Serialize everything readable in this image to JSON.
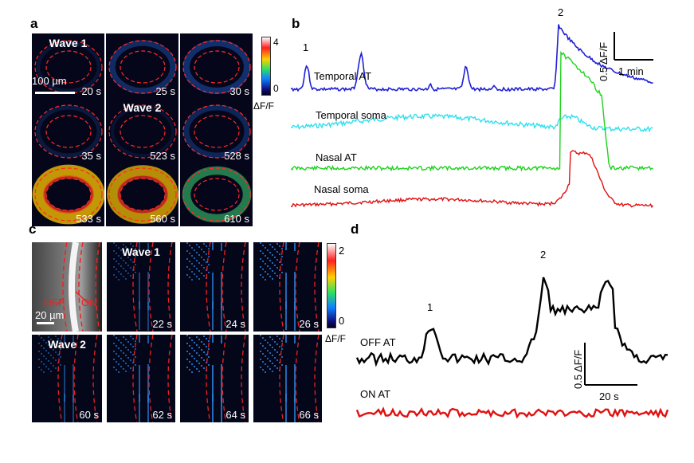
{
  "panels": {
    "a": "a",
    "b": "b",
    "c": "c",
    "d": "d"
  },
  "panel_a": {
    "colorbar": {
      "max": "4",
      "min": "0",
      "unit": "ΔF/F"
    },
    "scalebar": "100 µm",
    "tiles": [
      {
        "time": "20 s",
        "wave": "Wave 1",
        "activity": 0.05
      },
      {
        "time": "25 s",
        "wave": "",
        "activity": 0.3
      },
      {
        "time": "30 s",
        "wave": "",
        "activity": 0.35
      },
      {
        "time": "35 s",
        "wave": "",
        "activity": 0.1
      },
      {
        "time": "523 s",
        "wave": "Wave 2",
        "activity": 0.0
      },
      {
        "time": "528 s",
        "wave": "",
        "activity": 0.25
      },
      {
        "time": "533 s",
        "wave": "",
        "activity": 0.9
      },
      {
        "time": "560 s",
        "wave": "",
        "activity": 0.8
      },
      {
        "time": "610 s",
        "wave": "",
        "activity": 0.55
      }
    ]
  },
  "panel_b": {
    "traces": [
      {
        "name": "Temporal AT",
        "color": "#1f1fd6"
      },
      {
        "name": "Temporal soma",
        "color": "#2fe0f0"
      },
      {
        "name": "Nasal AT",
        "color": "#1ed21e"
      },
      {
        "name": "Nasal soma",
        "color": "#e01010"
      }
    ],
    "markers": [
      "1",
      "2"
    ],
    "scale_y": "0.5 ΔF/F",
    "scale_x": "1 min"
  },
  "panel_c": {
    "colorbar": {
      "max": "2",
      "min": "0",
      "unit": "ΔF/F"
    },
    "scalebar": "20 µm",
    "off_label": "OFF",
    "on_label": "ON",
    "tiles": [
      {
        "time": "22 s",
        "wave": "Wave 1",
        "activity": 0.1
      },
      {
        "time": "24 s",
        "wave": "",
        "activity": 0.35
      },
      {
        "time": "26 s",
        "wave": "",
        "activity": 0.4
      },
      {
        "time": "60 s",
        "wave": "Wave 2",
        "activity": 0.1
      },
      {
        "time": "62 s",
        "wave": "",
        "activity": 0.3
      },
      {
        "time": "64 s",
        "wave": "",
        "activity": 0.45
      },
      {
        "time": "66 s",
        "wave": "",
        "activity": 0.4
      }
    ]
  },
  "panel_d": {
    "traces": [
      {
        "name": "OFF AT",
        "color": "#000000"
      },
      {
        "name": "ON AT",
        "color": "#e01010"
      }
    ],
    "markers": [
      "1",
      "2"
    ],
    "scale_y": "0.5 ΔF/F",
    "scale_x": "20 s"
  }
}
